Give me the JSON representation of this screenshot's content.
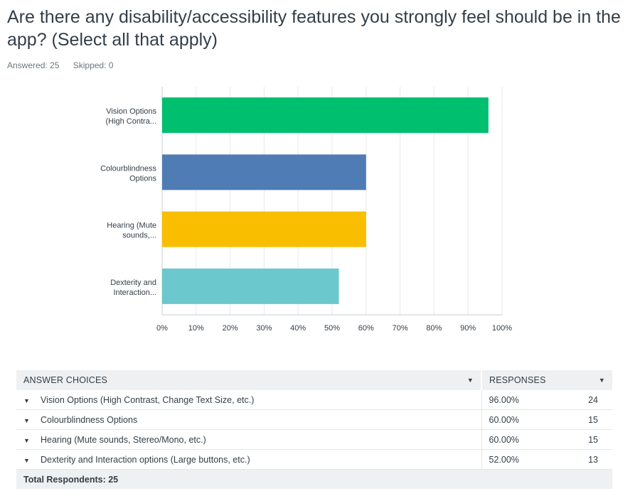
{
  "question": {
    "title": "Are there any disability/accessibility features you strongly feel should be in the app? (Select all that apply)",
    "answered": "Answered: 25",
    "skipped": "Skipped: 0"
  },
  "chart_data": {
    "type": "bar",
    "orientation": "horizontal",
    "categories": [
      [
        "Vision Options",
        "(High Contra..."
      ],
      [
        "Colourblindness",
        "Options"
      ],
      [
        "Hearing (Mute",
        "sounds,..."
      ],
      [
        "Dexterity and",
        "Interaction..."
      ]
    ],
    "values": [
      96,
      60,
      60,
      52
    ],
    "colors": [
      "#00bf6f",
      "#507cb6",
      "#f9be00",
      "#6bc8cd"
    ],
    "xlim": [
      0,
      100
    ],
    "xticks": [
      "0%",
      "10%",
      "20%",
      "30%",
      "40%",
      "50%",
      "60%",
      "70%",
      "80%",
      "90%",
      "100%"
    ],
    "grid": true
  },
  "table": {
    "header_choices": "ANSWER CHOICES",
    "header_responses": "RESPONSES",
    "rows": [
      {
        "choice": "Vision Options (High Contrast, Change Text Size, etc.)",
        "pct": "96.00%",
        "count": "24"
      },
      {
        "choice": "Colourblindness Options",
        "pct": "60.00%",
        "count": "15"
      },
      {
        "choice": "Hearing (Mute sounds, Stereo/Mono, etc.)",
        "pct": "60.00%",
        "count": "15"
      },
      {
        "choice": "Dexterity and Interaction options (Large buttons, etc.)",
        "pct": "52.00%",
        "count": "13"
      }
    ],
    "total": "Total Respondents: 25"
  }
}
